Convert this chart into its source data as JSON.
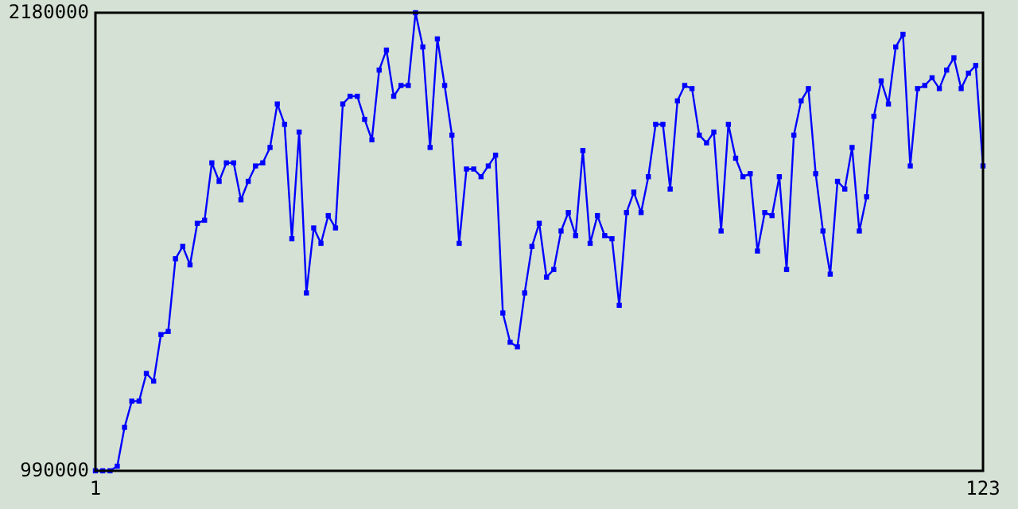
{
  "chart_data": {
    "type": "line",
    "marker": "square",
    "line_style": "solid",
    "x": [
      1,
      2,
      3,
      4,
      5,
      6,
      7,
      8,
      9,
      10,
      11,
      12,
      13,
      14,
      15,
      16,
      17,
      18,
      19,
      20,
      21,
      22,
      23,
      24,
      25,
      26,
      27,
      28,
      29,
      30,
      31,
      32,
      33,
      34,
      35,
      36,
      37,
      38,
      39,
      40,
      41,
      42,
      43,
      44,
      45,
      46,
      47,
      48,
      49,
      50,
      51,
      52,
      53,
      54,
      55,
      56,
      57,
      58,
      59,
      60,
      61,
      62,
      63,
      64,
      65,
      66,
      67,
      68,
      69,
      70,
      71,
      72,
      73,
      74,
      75,
      76,
      77,
      78,
      79,
      80,
      81,
      82,
      83,
      84,
      85,
      86,
      87,
      88,
      89,
      90,
      91,
      92,
      93,
      94,
      95,
      96,
      97,
      98,
      99,
      100,
      101,
      102,
      103,
      104,
      105,
      106,
      107,
      108,
      109,
      110,
      111,
      112,
      113,
      114,
      115,
      116,
      117,
      118,
      119,
      120,
      121,
      122,
      123
    ],
    "series": [
      {
        "color": "#0000ff",
        "values": [
          990000,
          990000,
          990000,
          1002000,
          1103000,
          1171000,
          1171000,
          1243000,
          1223000,
          1344000,
          1352000,
          1541000,
          1573000,
          1525000,
          1633000,
          1641000,
          1790000,
          1742000,
          1790000,
          1790000,
          1694000,
          1742000,
          1782000,
          1790000,
          1830000,
          1943000,
          1890000,
          1593000,
          1870000,
          1452000,
          1621000,
          1581000,
          1653000,
          1621000,
          1943000,
          1963000,
          1963000,
          1903000,
          1850000,
          2031000,
          2083000,
          1963000,
          1991000,
          1991000,
          2180000,
          2091000,
          1830000,
          2112000,
          1991000,
          1862000,
          1581000,
          1774000,
          1774000,
          1754000,
          1782000,
          1810000,
          1400000,
          1324000,
          1312000,
          1452000,
          1573000,
          1633000,
          1493000,
          1513000,
          1613000,
          1661000,
          1601000,
          1822000,
          1581000,
          1653000,
          1601000,
          1593000,
          1420000,
          1661000,
          1714000,
          1661000,
          1754000,
          1890000,
          1890000,
          1722000,
          1951000,
          1991000,
          1983000,
          1862000,
          1842000,
          1870000,
          1613000,
          1890000,
          1802000,
          1754000,
          1762000,
          1561000,
          1661000,
          1653000,
          1754000,
          1513000,
          1862000,
          1951000,
          1983000,
          1762000,
          1613000,
          1501000,
          1742000,
          1722000,
          1830000,
          1613000,
          1702000,
          1911000,
          2003000,
          1943000,
          2091000,
          2124000,
          1782000,
          1983000,
          1991000,
          2011000,
          1983000,
          2031000,
          2063000,
          1983000,
          2023000,
          2043000,
          1782000
        ]
      }
    ],
    "xlim": [
      1,
      123
    ],
    "xticks": [
      1,
      123
    ],
    "ylim": [
      990000,
      2180000
    ],
    "yticks": [
      990000,
      2180000
    ]
  }
}
